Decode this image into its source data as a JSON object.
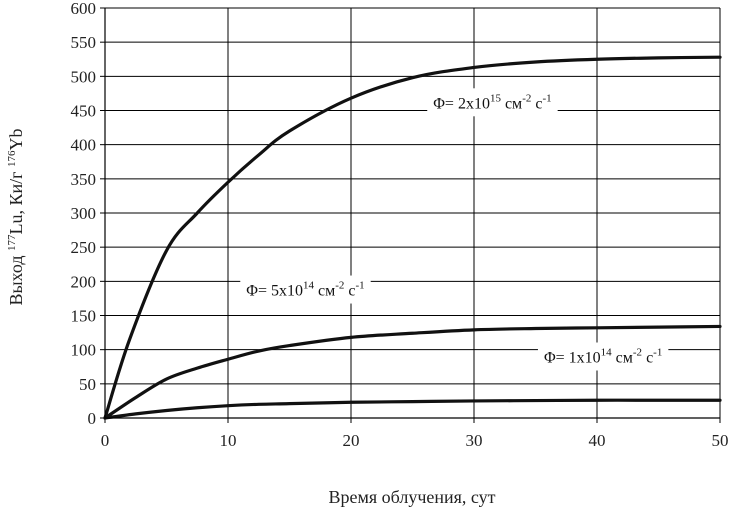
{
  "chart_data": {
    "type": "line",
    "xlabel": "Время облучения, сут",
    "ylabel": {
      "prefix": "Выход ",
      "sup1": "177",
      "mid": "Lu, Ки/г ",
      "sup2": "176",
      "suffix": "Yb"
    },
    "xlim": [
      0,
      50
    ],
    "ylim": [
      0,
      600
    ],
    "xticks": [
      0,
      10,
      20,
      30,
      40,
      50
    ],
    "yticks": [
      0,
      50,
      100,
      150,
      200,
      250,
      300,
      350,
      400,
      450,
      500,
      550,
      600
    ],
    "grid": true,
    "series": [
      {
        "x": [
          0,
          2,
          5,
          7.5,
          10,
          12.5,
          15,
          20,
          25,
          30,
          35,
          40,
          45,
          50
        ],
        "y": [
          0,
          115,
          245,
          300,
          345,
          385,
          420,
          468,
          498,
          513,
          521,
          525,
          527,
          528
        ]
      },
      {
        "x": [
          0,
          2.5,
          5,
          7.5,
          10,
          12.5,
          15,
          20,
          25,
          30,
          35,
          40,
          45,
          50
        ],
        "y": [
          0,
          30,
          57,
          73,
          86,
          98,
          106,
          118,
          124,
          129,
          131,
          132,
          133,
          134
        ]
      },
      {
        "x": [
          0,
          2.5,
          5,
          7.5,
          10,
          12.5,
          15,
          20,
          25,
          30,
          35,
          40,
          45,
          50
        ],
        "y": [
          0,
          6,
          11,
          15,
          18,
          20,
          21,
          23,
          24,
          25,
          25.5,
          26,
          26,
          26
        ]
      }
    ],
    "annotations": [
      {
        "p1": "Φ= 2x10",
        "e1": "15",
        "p2": " см",
        "e2": "-2",
        "p3": " с",
        "e3": "-1",
        "x": 31.5,
        "y": 462
      },
      {
        "p1": "Φ= 5x10",
        "e1": "14",
        "p2": " см",
        "e2": "-2",
        "p3": " с",
        "e3": "-1",
        "x": 16.3,
        "y": 188
      },
      {
        "p1": "Φ= 1x10",
        "e1": "14",
        "p2": " см",
        "e2": "-2",
        "p3": " с",
        "e3": "-1",
        "x": 40.5,
        "y": 90
      }
    ]
  }
}
